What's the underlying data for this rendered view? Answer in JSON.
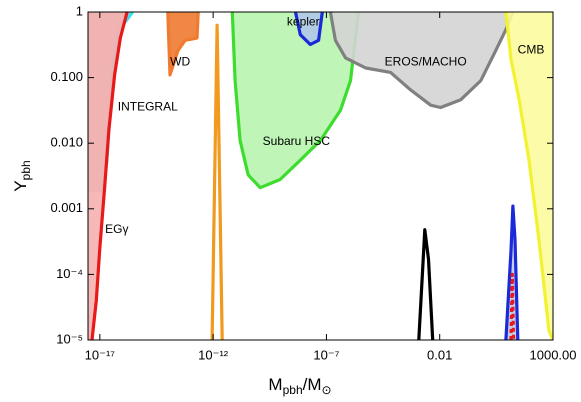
{
  "chart_data": {
    "type": "region",
    "xlabel": {
      "main": "M",
      "sub": "pbh",
      "main2": "/M",
      "sub2": "⊙"
    },
    "ylabel": {
      "main": "Y",
      "sub": "pbh"
    },
    "xscale": "log",
    "yscale": "log",
    "xlim": [
      3e-18,
      1000
    ],
    "ylim": [
      1e-05,
      1
    ],
    "xticks": [
      {
        "value": 1e-17,
        "label": "10⁻¹⁷"
      },
      {
        "value": 1e-12,
        "label": "10⁻¹²"
      },
      {
        "value": 1e-07,
        "label": "10⁻⁷"
      },
      0.01,
      {
        "value": 1000,
        "label": "1000.00"
      }
    ],
    "yticks": [
      {
        "value": 1e-05,
        "label": "10⁻⁵"
      },
      {
        "value": 0.0001,
        "label": "10⁻⁴"
      },
      {
        "value": 0.001,
        "label": "0.001"
      },
      {
        "value": 0.01,
        "label": "0.010"
      },
      {
        "value": 0.1,
        "label": "0.100"
      },
      1
    ],
    "series": [
      {
        "name": "INTEGRAL",
        "label_at": [
          1.3e-15,
          0.035
        ],
        "color": "#36e2f2",
        "fill": "#bdbdbd",
        "fill_to": "left",
        "x": [
          1.35e-17,
          2e-17,
          2.8e-17,
          4e-17,
          6.3e-17,
          2.8e-16
        ],
        "values": [
          0.0018,
          0.005,
          0.032,
          0.16,
          0.5,
          1
        ]
      },
      {
        "name": "EGγ",
        "label_at": [
          5.6e-17,
          0.00048
        ],
        "color": "#e81919",
        "fill": "#f6b0b0",
        "fill_to": "left",
        "x": [
          4.5e-18,
          7e-18,
          1e-17,
          1.6e-17,
          2.5e-17,
          4.5e-17,
          8e-17,
          1.6e-16
        ],
        "values": [
          1e-05,
          4e-05,
          0.00025,
          0.002,
          0.016,
          0.11,
          0.4,
          1
        ]
      },
      {
        "name": "WD",
        "label_at": [
          3.5e-14,
          0.17
        ],
        "color": "#f07a30",
        "fill": "#f07a30",
        "fill_to": "top",
        "x": [
          1e-14,
          1.25e-14,
          2.8e-14,
          5.8e-14,
          1.95e-13,
          2.2e-13
        ],
        "values": [
          1,
          0.11,
          0.26,
          0.37,
          0.4,
          1
        ]
      },
      {
        "color": "#f29a1e",
        "fill_to": "none",
        "x": [
          9e-13,
          1.5e-12,
          2.5e-12
        ],
        "values": [
          1e-05,
          0.63,
          1e-05
        ]
      },
      {
        "name": "Subaru HSC",
        "label_at": [
          4.7e-09,
          0.0105
        ],
        "color": "#3ddc2e",
        "fill": "#b8f5b0",
        "fill_to": "top",
        "x": [
          7e-12,
          9.3e-12,
          1.55e-11,
          3.5e-11,
          1.2e-10,
          9e-10,
          7e-09,
          5.4e-08,
          4.2e-07,
          1.15e-06,
          2.6e-06
        ],
        "values": [
          1,
          0.09,
          0.011,
          0.0033,
          0.0021,
          0.0028,
          0.0055,
          0.011,
          0.032,
          0.09,
          1
        ]
      },
      {
        "name": "EROS/MACHO",
        "label_at": [
          0.0024,
          0.17
        ],
        "color": "#808080",
        "fill": "#d4d4d4",
        "fill_to": "top",
        "x": [
          1.5e-07,
          2.5e-07,
          7e-07,
          5.4e-06,
          6.8e-05,
          0.00052,
          0.004,
          0.011,
          0.085,
          0.65,
          3,
          8.3,
          17
        ],
        "values": [
          1,
          0.37,
          0.2,
          0.14,
          0.12,
          0.065,
          0.038,
          0.035,
          0.046,
          0.09,
          0.26,
          0.54,
          1
        ]
      },
      {
        "name": "kepler",
        "label_at": [
          9.5e-09,
          0.7
        ],
        "color": "#1a2ad8",
        "fill": "#b0c8e8",
        "fill_to": "top",
        "x": [
          4.3e-09,
          7e-09,
          1.95e-08,
          4.5e-08,
          6.6e-08
        ],
        "values": [
          1,
          0.45,
          0.32,
          0.37,
          1
        ]
      },
      {
        "name": "CMB",
        "label_at": [
          107,
          0.26
        ],
        "color": "#f2f230",
        "fill": "#fbfb9e",
        "fill_to": "right",
        "x": [
          8.3,
          14,
          32,
          87,
          240,
          660,
          1000
        ],
        "values": [
          1,
          0.19,
          0.046,
          0.0055,
          0.00033,
          1.4e-05,
          1e-05
        ]
      },
      {
        "color": "#000000",
        "fill_to": "none",
        "x": [
          0.0012,
          0.0022,
          0.0032,
          0.0049
        ],
        "values": [
          1e-05,
          0.00048,
          0.00017,
          1e-05
        ]
      },
      {
        "color": "#1a2ad8",
        "fill": "#c0c8f0",
        "fill_to": "closed",
        "x": [
          8.3,
          14,
          17,
          21,
          28
        ],
        "values": [
          1e-05,
          0.00023,
          0.0011,
          0.00034,
          1e-05
        ]
      },
      {
        "color": "#e81919",
        "fill_to": "none",
        "dash": true,
        "x": [
          14,
          16,
          18
        ],
        "values": [
          1e-05,
          0.0001,
          1e-05
        ]
      }
    ]
  }
}
